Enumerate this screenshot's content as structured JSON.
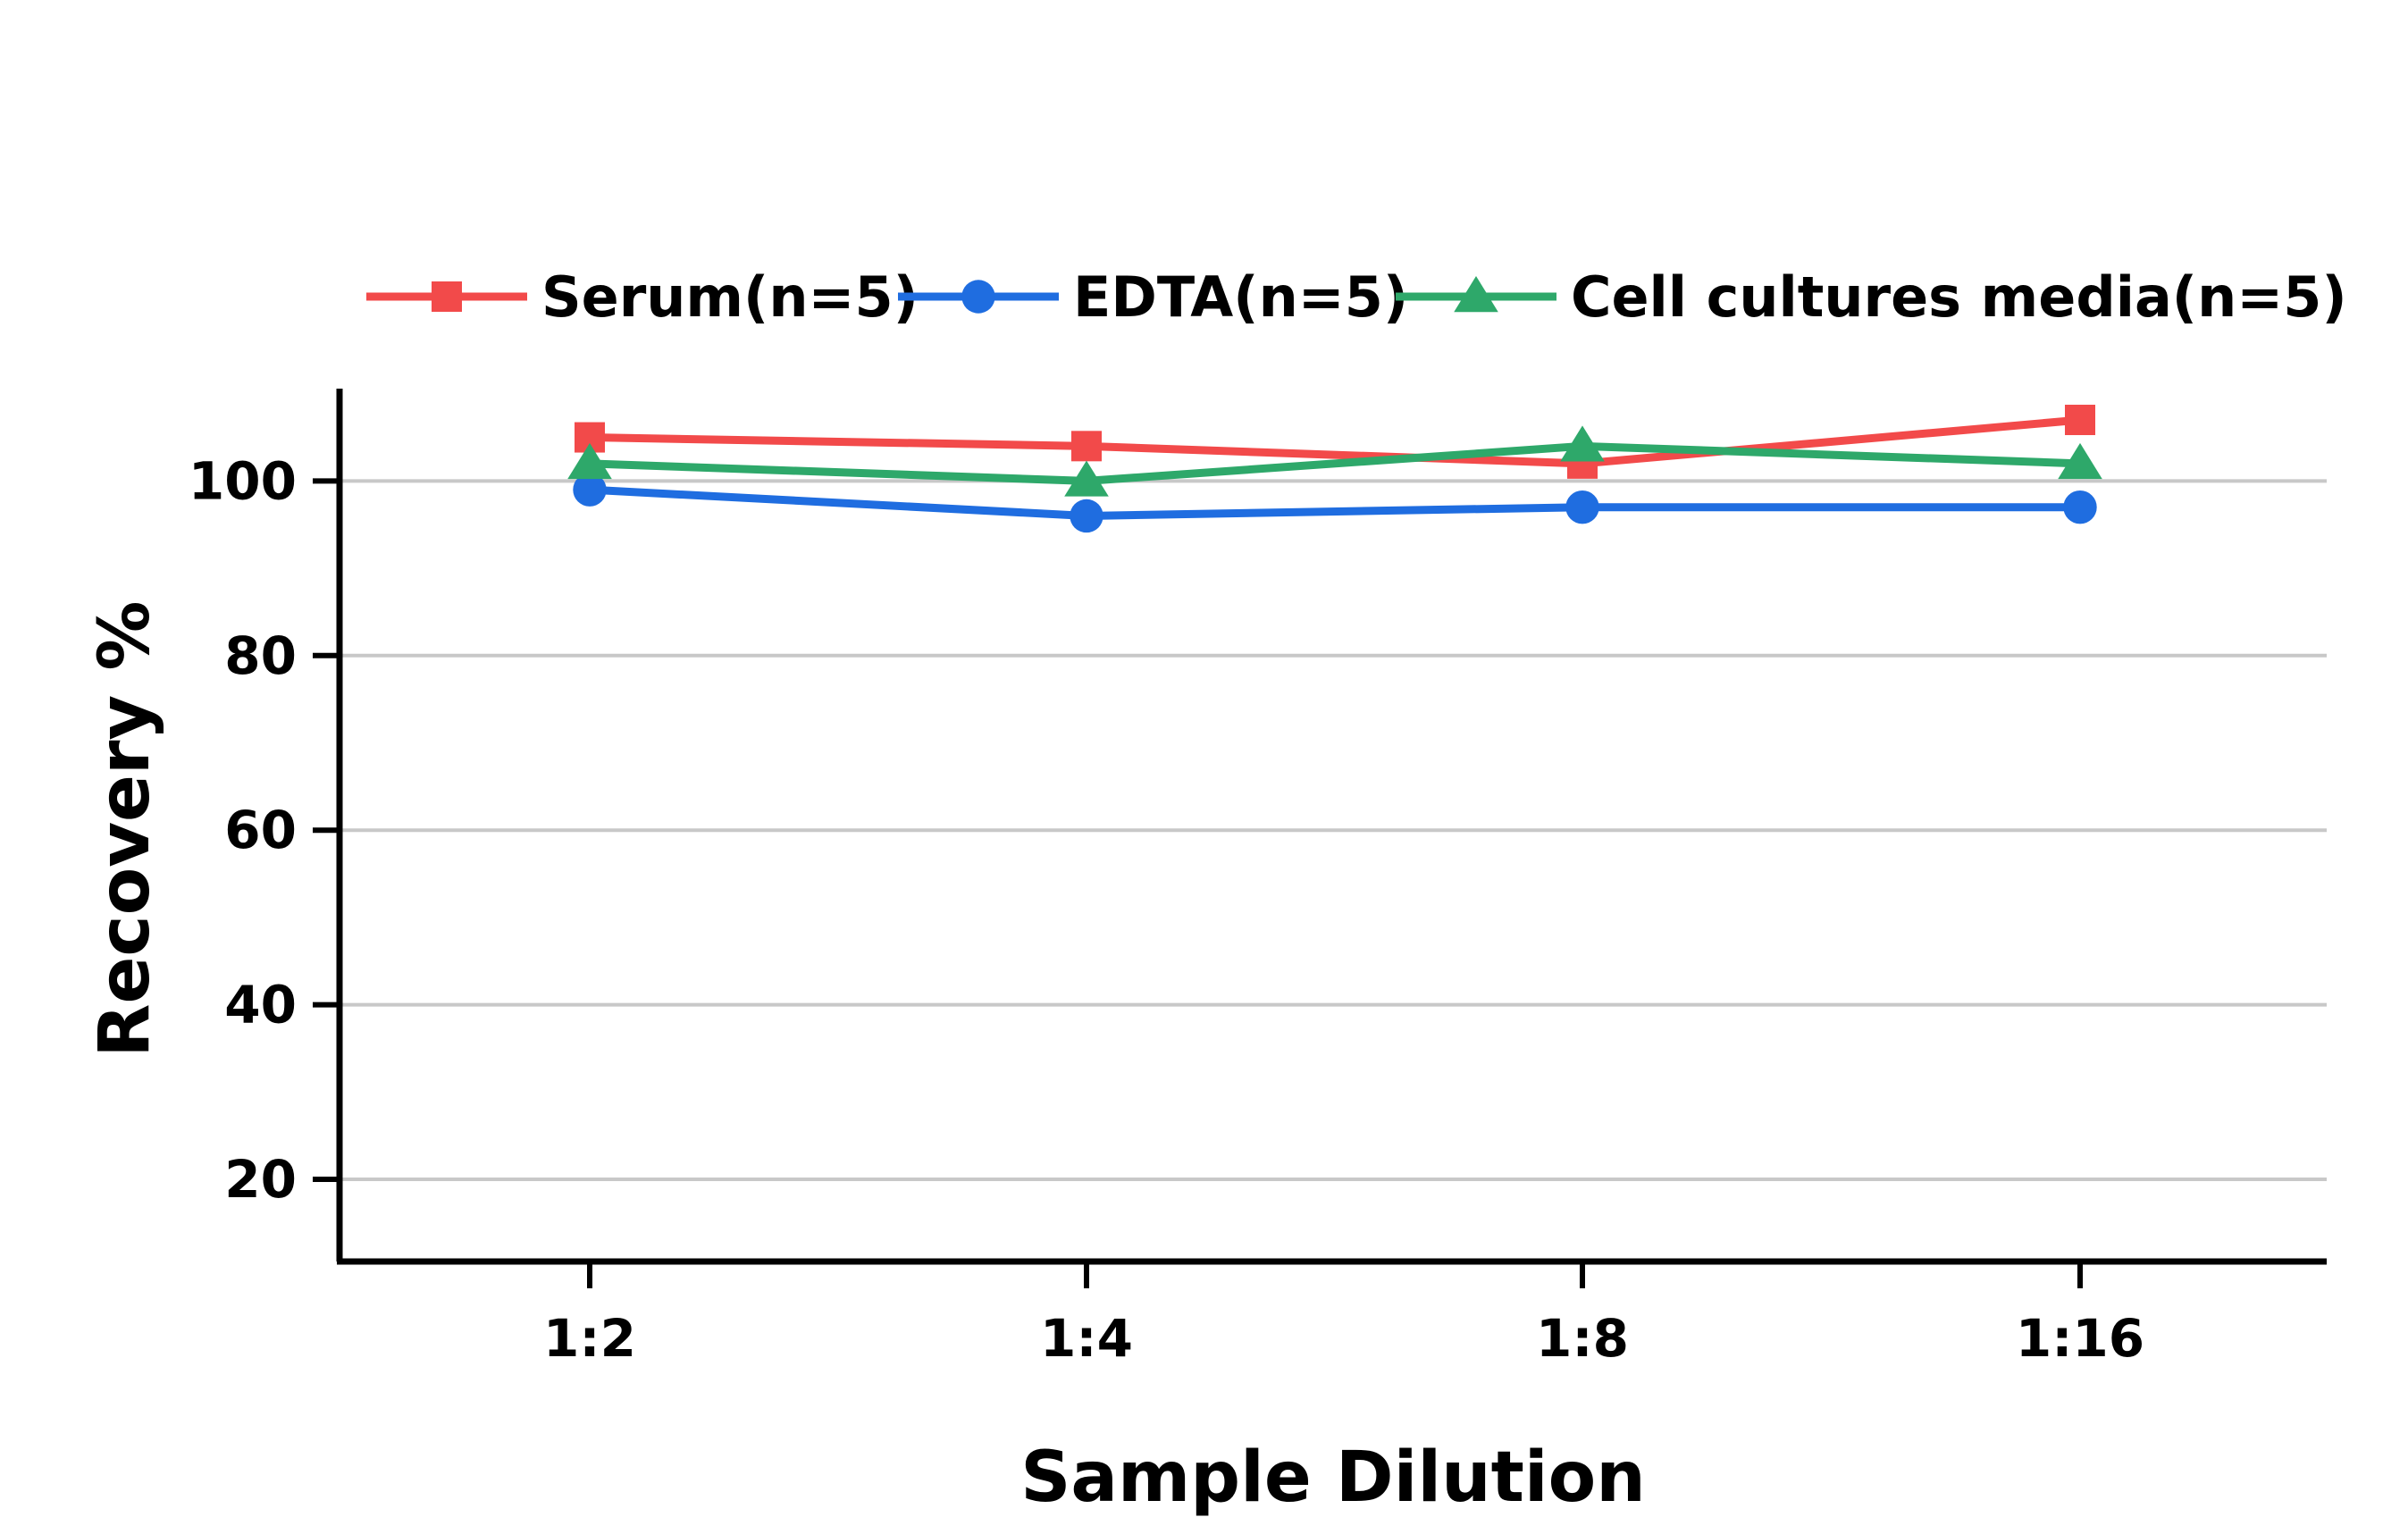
{
  "chart_data": {
    "type": "line",
    "title": "",
    "xlabel": "Sample Dilution",
    "ylabel": "Recovery %",
    "categories": [
      "1:2",
      "1:4",
      "1:8",
      "1:16"
    ],
    "yticks": [
      20,
      40,
      60,
      80,
      100
    ],
    "ylim": [
      10,
      110
    ],
    "grid": true,
    "legend_position": "top",
    "series": [
      {
        "name": "Serum(n=5)",
        "values": [
          105,
          104,
          102,
          107
        ],
        "color": "#f24a4a",
        "marker": "square"
      },
      {
        "name": "EDTA(n=5)",
        "values": [
          99,
          96,
          97,
          97
        ],
        "color": "#1f6de0",
        "marker": "circle"
      },
      {
        "name": "Cell cultures media(n=5)",
        "values": [
          102,
          100,
          104,
          102
        ],
        "color": "#2ea86a",
        "marker": "triangle"
      }
    ]
  }
}
